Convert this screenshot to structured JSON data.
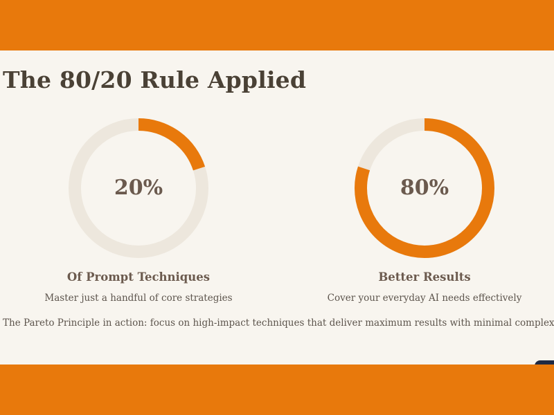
{
  "slide": {
    "title": "The 80/20 Rule Applied",
    "footer": "The Pareto Principle in action: focus on high-impact techniques that deliver maximum results with minimal complexity."
  },
  "colors": {
    "accent": "#e8790c",
    "track": "#ede7dd",
    "background": "#f8f5ef",
    "heading": "#4a4135",
    "value_text": "#6b5a4e"
  },
  "stats": [
    {
      "percent": 20,
      "value_label": "20%",
      "label": "Of Prompt Techniques",
      "description": "Master just a handful of core strategies"
    },
    {
      "percent": 80,
      "value_label": "80%",
      "label": "Better Results",
      "description": "Cover your everyday AI needs effectively"
    }
  ]
}
